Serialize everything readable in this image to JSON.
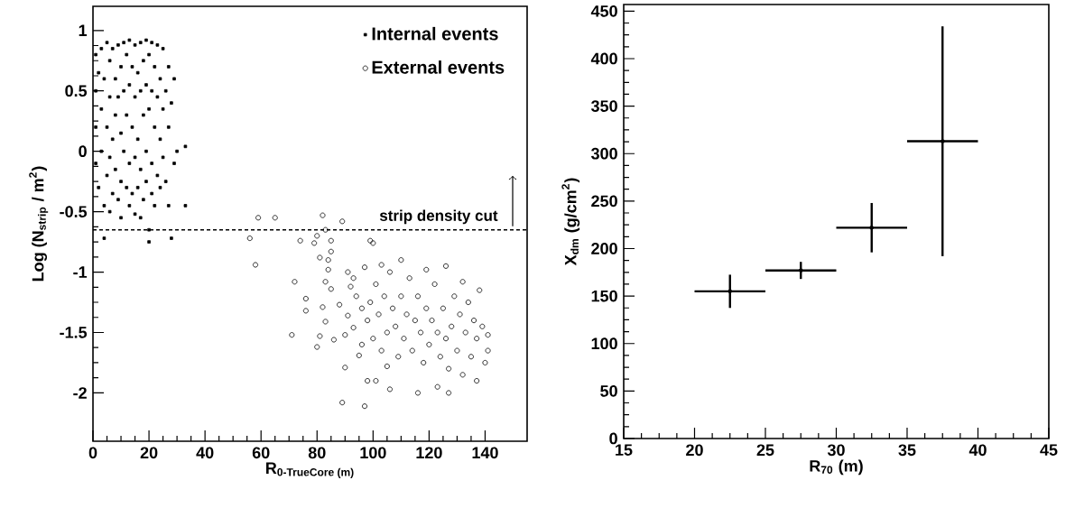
{
  "chart_data": [
    {
      "type": "scatter",
      "xlabel": "\\text{\\bfseries R}_{\\text{\\bfseries 0-TrueCore (m)}}",
      "ylabel": "Log (N$_{strip}$ / m$^{2}$)",
      "xlim": [
        0,
        155
      ],
      "ylim": [
        -2.4,
        1.2
      ],
      "xticks": [
        0,
        20,
        40,
        60,
        80,
        100,
        120,
        140
      ],
      "yticks": [
        -2,
        -1.5,
        -1,
        -0.5,
        0,
        0.5,
        1
      ],
      "grid": false,
      "legend": "top right",
      "ref_lines": [
        {
          "axis": "y",
          "value": -0.65,
          "label": "strip density cut",
          "line_style": "dashed",
          "color": "#000000"
        }
      ],
      "series": [
        {
          "name": "Internal events",
          "color": "#000000",
          "marker": "square",
          "x": [
            1,
            1,
            1,
            1,
            2,
            2,
            3,
            3,
            3,
            4,
            4,
            4,
            5,
            5,
            5,
            6,
            6,
            6,
            6,
            7,
            7,
            7,
            8,
            8,
            8,
            9,
            9,
            9,
            10,
            10,
            10,
            10,
            11,
            11,
            11,
            12,
            12,
            12,
            13,
            13,
            13,
            13,
            14,
            14,
            14,
            15,
            15,
            15,
            15,
            16,
            16,
            16,
            17,
            17,
            17,
            17,
            18,
            18,
            18,
            19,
            19,
            19,
            19,
            20,
            20,
            20,
            20,
            21,
            21,
            21,
            21,
            22,
            22,
            22,
            23,
            23,
            23,
            24,
            24,
            24,
            25,
            25,
            25,
            26,
            26,
            27,
            27,
            27,
            28,
            28,
            29,
            29,
            30,
            33,
            33
          ],
          "values": [
            0.8,
            0.5,
            0.2,
            -0.1,
            -0.3,
            0.65,
            0.85,
            0.35,
            0.0,
            -0.45,
            0.6,
            -0.72,
            0.9,
            0.2,
            -0.2,
            0.75,
            0.45,
            -0.05,
            -0.5,
            0.85,
            0.1,
            -0.35,
            0.6,
            0.3,
            -0.15,
            0.88,
            0.45,
            -0.4,
            0.7,
            0.15,
            -0.25,
            -0.55,
            0.9,
            0.5,
            0.0,
            0.8,
            0.3,
            -0.3,
            0.92,
            0.55,
            -0.1,
            -0.45,
            0.7,
            0.2,
            -0.35,
            0.88,
            0.45,
            -0.05,
            -0.52,
            0.65,
            0.1,
            -0.3,
            0.9,
            0.5,
            -0.15,
            -0.55,
            0.75,
            0.3,
            -0.4,
            0.92,
            0.55,
            0.0,
            -0.25,
            0.8,
            0.35,
            -0.65,
            -0.75,
            0.9,
            0.5,
            -0.1,
            -0.35,
            0.7,
            0.2,
            -0.45,
            0.88,
            0.45,
            -0.2,
            0.6,
            0.1,
            -0.3,
            0.85,
            0.35,
            -0.05,
            0.5,
            -0.25,
            0.7,
            0.2,
            -0.45,
            0.4,
            -0.72,
            0.6,
            -0.1,
            0.0,
            0.04,
            -0.45
          ]
        },
        {
          "name": "External events",
          "color": "#000000",
          "marker": "circle",
          "x": [
            56,
            59,
            58,
            65,
            71,
            72,
            74,
            76,
            76,
            79,
            80,
            80,
            81,
            81,
            82,
            82,
            83,
            83,
            83,
            84,
            84,
            85,
            85,
            85,
            86,
            88,
            89,
            89,
            90,
            90,
            91,
            91,
            92,
            93,
            93,
            94,
            95,
            96,
            96,
            97,
            97,
            98,
            98,
            99,
            99,
            100,
            100,
            101,
            101,
            102,
            103,
            103,
            104,
            105,
            105,
            106,
            106,
            107,
            108,
            109,
            110,
            110,
            111,
            112,
            113,
            114,
            115,
            116,
            116,
            117,
            118,
            119,
            119,
            120,
            121,
            122,
            123,
            123,
            124,
            125,
            126,
            126,
            127,
            127,
            128,
            129,
            130,
            131,
            132,
            132,
            133,
            134,
            135,
            136,
            137,
            137,
            138,
            139,
            140,
            141,
            141
          ],
          "values": [
            -0.72,
            -0.55,
            -0.94,
            -0.55,
            -1.52,
            -1.08,
            -0.74,
            -1.22,
            -1.32,
            -0.76,
            -0.7,
            -1.62,
            -1.53,
            -0.88,
            -1.29,
            -0.53,
            -0.65,
            -1.41,
            -1.08,
            -0.9,
            -0.98,
            -0.74,
            -0.83,
            -1.14,
            -1.56,
            -1.27,
            -0.58,
            -2.08,
            -1.79,
            -1.52,
            -1.0,
            -1.36,
            -1.12,
            -1.05,
            -1.46,
            -1.2,
            -1.69,
            -1.3,
            -1.6,
            -2.11,
            -0.96,
            -1.9,
            -1.4,
            -0.74,
            -1.25,
            -0.76,
            -1.55,
            -1.9,
            -1.1,
            -1.35,
            -1.65,
            -0.94,
            -1.2,
            -1.5,
            -1.78,
            -1.97,
            -1.0,
            -1.3,
            -1.45,
            -1.7,
            -0.9,
            -1.2,
            -1.55,
            -1.35,
            -1.05,
            -1.65,
            -1.4,
            -2.0,
            -1.2,
            -1.5,
            -1.75,
            -0.98,
            -1.3,
            -1.6,
            -1.4,
            -1.1,
            -1.95,
            -1.5,
            -1.7,
            -1.3,
            -0.95,
            -1.55,
            -2.0,
            -1.8,
            -1.45,
            -1.2,
            -1.65,
            -1.35,
            -1.85,
            -1.08,
            -1.5,
            -1.25,
            -1.7,
            -1.4,
            -1.9,
            -1.55,
            -1.15,
            -1.45,
            -1.75,
            -1.52,
            -1.65
          ]
        }
      ]
    },
    {
      "type": "scatter",
      "xlabel": "R$_{70}$ (m)",
      "ylabel": "X$_{dm}$ (g/cm$^{2}$)",
      "xlim": [
        15,
        45
      ],
      "ylim": [
        0,
        457
      ],
      "xticks": [
        15,
        20,
        25,
        30,
        35,
        40,
        45
      ],
      "yticks": [
        0,
        50,
        100,
        150,
        200,
        250,
        300,
        350,
        400,
        450
      ],
      "grid": false,
      "legend": false,
      "x": [
        22.5,
        27.5,
        32.5,
        37.5
      ],
      "values": [
        155,
        177,
        222,
        313
      ],
      "color": "#000000",
      "errors": [
        17.5,
        9,
        26,
        121
      ],
      "xerrors": [
        2.5,
        2.5,
        2.5,
        2.5
      ]
    }
  ]
}
